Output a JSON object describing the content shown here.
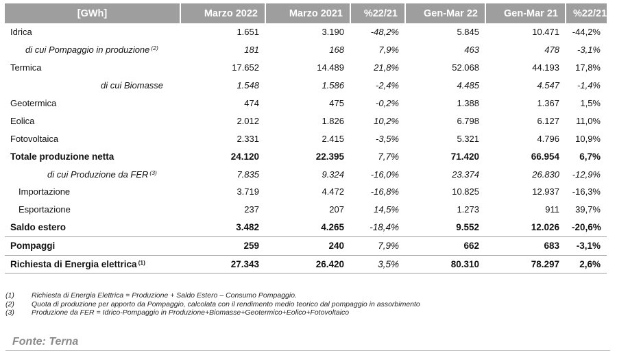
{
  "table": {
    "headers": [
      "[GWh]",
      "Marzo 2022",
      "Marzo 2021",
      "%22/21",
      "Gen-Mar 22",
      "Gen-Mar 21",
      "%22/21"
    ],
    "rows": [
      {
        "label": "Idrica",
        "sup": "",
        "values": [
          "1.651",
          "3.190",
          "-48,2%",
          "5.845",
          "10.471",
          "-44,2%"
        ]
      },
      {
        "label": "di cui Pompaggio in produzione",
        "sup": "(2)",
        "values": [
          "181",
          "168",
          "7,9%",
          "463",
          "478",
          "-3,1%"
        ]
      },
      {
        "label": "Termica",
        "sup": "",
        "values": [
          "17.652",
          "14.489",
          "21,8%",
          "52.068",
          "44.193",
          "17,8%"
        ]
      },
      {
        "label": "di cui Biomasse",
        "sup": "",
        "values": [
          "1.548",
          "1.586",
          "-2,4%",
          "4.485",
          "4.547",
          "-1,4%"
        ]
      },
      {
        "label": "Geotermica",
        "sup": "",
        "values": [
          "474",
          "475",
          "-0,2%",
          "1.388",
          "1.367",
          "1,5%"
        ]
      },
      {
        "label": "Eolica",
        "sup": "",
        "values": [
          "2.012",
          "1.826",
          "10,2%",
          "6.798",
          "6.127",
          "11,0%"
        ]
      },
      {
        "label": "Fotovoltaica",
        "sup": "",
        "values": [
          "2.331",
          "2.415",
          "-3,5%",
          "5.321",
          "4.796",
          "10,9%"
        ]
      },
      {
        "label": "Totale produzione netta",
        "sup": "",
        "values": [
          "24.120",
          "22.395",
          "7,7%",
          "71.420",
          "66.954",
          "6,7%"
        ]
      },
      {
        "label": "di cui Produzione da FER",
        "sup": "(3)",
        "values": [
          "7.835",
          "9.324",
          "-16,0%",
          "23.374",
          "26.830",
          "-12,9%"
        ]
      },
      {
        "label": "Importazione",
        "sup": "",
        "values": [
          "3.719",
          "4.472",
          "-16,8%",
          "10.825",
          "12.937",
          "-16,3%"
        ]
      },
      {
        "label": "Esportazione",
        "sup": "",
        "values": [
          "237",
          "207",
          "14,5%",
          "1.273",
          "911",
          "39,7%"
        ]
      },
      {
        "label": "Saldo estero",
        "sup": "",
        "values": [
          "3.482",
          "4.265",
          "-18,4%",
          "9.552",
          "12.026",
          "-20,6%"
        ]
      },
      {
        "label": "Pompaggi",
        "sup": "",
        "values": [
          "259",
          "240",
          "7,9%",
          "662",
          "683",
          "-3,1%"
        ]
      },
      {
        "label": "Richiesta di Energia elettrica",
        "sup": "(1)",
        "values": [
          "27.343",
          "26.420",
          "3,5%",
          "80.310",
          "78.297",
          "2,6%"
        ]
      }
    ]
  },
  "notes": [
    {
      "num": "(1)",
      "text": "Richiesta di Energia Elettrica = Produzione  + Saldo Estero  – Consumo  Pompaggio."
    },
    {
      "num": "(2)",
      "text": "Quota di produzione  per apporto  da Pompaggio,  calcolata con il rendimento  medio teorico dal pompaggio  in assorbimento"
    },
    {
      "num": "(3)",
      "text": "Produzione  da FER = Idrico-Pompaggio  in Produzione+Biomasse+Geotermico+Eolico+Fotovoltaico"
    }
  ],
  "source": "Fonte: Terna"
}
